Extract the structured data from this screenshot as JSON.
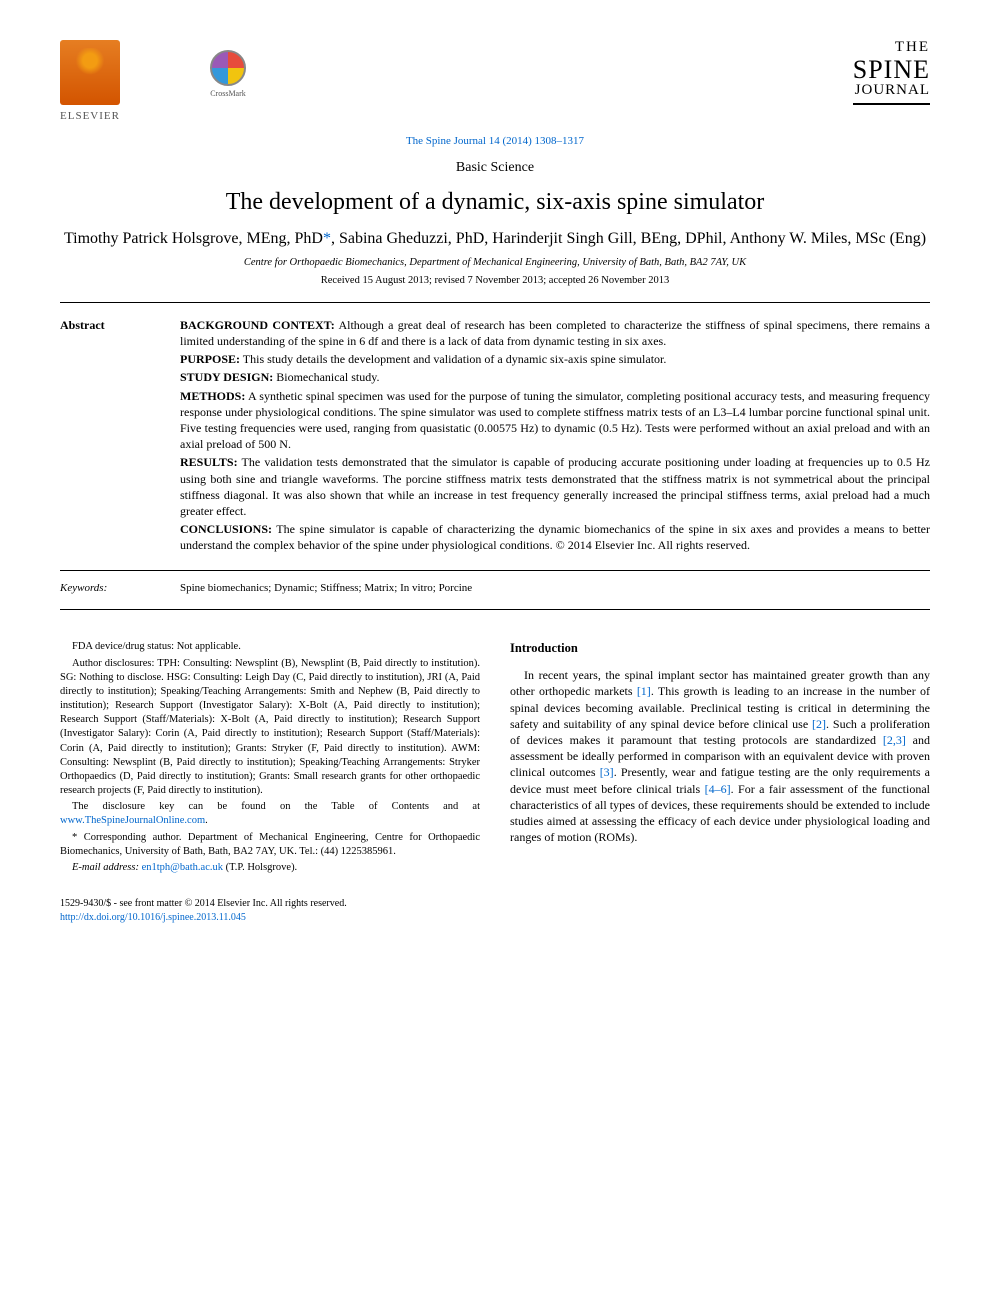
{
  "header": {
    "elsevier": "ELSEVIER",
    "crossmark": "CrossMark",
    "journal": {
      "the": "THE",
      "spine": "SPINE",
      "journal": "JOURNAL"
    },
    "citation": "The Spine Journal 14 (2014) 1308–1317"
  },
  "article": {
    "type": "Basic Science",
    "title": "The development of a dynamic, six-axis spine simulator",
    "authors": "Timothy Patrick Holsgrove, MEng, PhD*, Sabina Gheduzzi, PhD, Harinderjit Singh Gill, BEng, DPhil, Anthony W. Miles, MSc (Eng)",
    "affiliation": "Centre for Orthopaedic Biomechanics, Department of Mechanical Engineering, University of Bath, Bath, BA2 7AY, UK",
    "dates": "Received 15 August 2013; revised 7 November 2013; accepted 26 November 2013"
  },
  "abstract": {
    "label": "Abstract",
    "background_label": "BACKGROUND CONTEXT:",
    "background": "Although a great deal of research has been completed to characterize the stiffness of spinal specimens, there remains a limited understanding of the spine in 6 df and there is a lack of data from dynamic testing in six axes.",
    "purpose_label": "PURPOSE:",
    "purpose": "This study details the development and validation of a dynamic six-axis spine simulator.",
    "design_label": "STUDY DESIGN:",
    "design": "Biomechanical study.",
    "methods_label": "METHODS:",
    "methods": "A synthetic spinal specimen was used for the purpose of tuning the simulator, completing positional accuracy tests, and measuring frequency response under physiological conditions. The spine simulator was used to complete stiffness matrix tests of an L3–L4 lumbar porcine functional spinal unit. Five testing frequencies were used, ranging from quasistatic (0.00575 Hz) to dynamic (0.5 Hz). Tests were performed without an axial preload and with an axial preload of 500 N.",
    "results_label": "RESULTS:",
    "results": "The validation tests demonstrated that the simulator is capable of producing accurate positioning under loading at frequencies up to 0.5 Hz using both sine and triangle waveforms. The porcine stiffness matrix tests demonstrated that the stiffness matrix is not symmetrical about the principal stiffness diagonal. It was also shown that while an increase in test frequency generally increased the principal stiffness terms, axial preload had a much greater effect.",
    "conclusions_label": "CONCLUSIONS:",
    "conclusions": "The spine simulator is capable of characterizing the dynamic biomechanics of the spine in six axes and provides a means to better understand the complex behavior of the spine under physiological conditions.   © 2014 Elsevier Inc. All rights reserved."
  },
  "keywords": {
    "label": "Keywords:",
    "body": "Spine biomechanics; Dynamic; Stiffness; Matrix; In vitro; Porcine"
  },
  "footnotes": {
    "fda": "FDA device/drug status: Not applicable.",
    "disclosures": "Author disclosures: TPH: Consulting: Newsplint (B), Newsplint (B, Paid directly to institution). SG: Nothing to disclose. HSG: Consulting: Leigh Day (C, Paid directly to institution), JRI (A, Paid directly to institution); Speaking/Teaching Arrangements: Smith and Nephew (B, Paid directly to institution); Research Support (Investigator Salary): X-Bolt (A, Paid directly to institution); Research Support (Staff/Materials): X-Bolt (A, Paid directly to institution); Research Support (Investigator Salary): Corin (A, Paid directly to institution); Research Support (Staff/Materials): Corin (A, Paid directly to institution); Grants: Stryker (F, Paid directly to institution). AWM: Consulting: Newsplint (B, Paid directly to institution); Speaking/Teaching Arrangements: Stryker Orthopaedics (D, Paid directly to institution); Grants: Small research grants for other orthopaedic research projects (F, Paid directly to institution).",
    "disclosure_key_pre": "The disclosure key can be found on the Table of Contents and at ",
    "disclosure_key_link": "www.TheSpineJournalOnline.com",
    "disclosure_key_post": ".",
    "corresponding": "* Corresponding author. Department of Mechanical Engineering, Centre for Orthopaedic Biomechanics, University of Bath, Bath, BA2 7AY, UK. Tel.: (44) 1225385961.",
    "email_label": "E-mail address: ",
    "email": "en1tph@bath.ac.uk",
    "email_post": " (T.P. Holsgrove)."
  },
  "introduction": {
    "heading": "Introduction",
    "body_pre": "In recent years, the spinal implant sector has maintained greater growth than any other orthopedic markets ",
    "c1": "[1]",
    "body_2": ". This growth is leading to an increase in the number of spinal devices becoming available. Preclinical testing is critical in determining the safety and suitability of any spinal device before clinical use ",
    "c2": "[2]",
    "body_3": ". Such a proliferation of devices makes it paramount that testing protocols are standardized ",
    "c3": "[2,3]",
    "body_4": " and assessment be ideally performed in comparison with an equivalent device with proven clinical outcomes ",
    "c4": "[3]",
    "body_5": ". Presently, wear and fatigue testing are the only requirements a device must meet before clinical trials ",
    "c5": "[4–6]",
    "body_6": ". For a fair assessment of the functional characteristics of all types of devices, these requirements should be extended to include studies aimed at assessing the efficacy of each device under physiological loading and ranges of motion (ROMs)."
  },
  "footer": {
    "issn": "1529-9430/$ - see front matter © 2014 Elsevier Inc. All rights reserved.",
    "doi": "http://dx.doi.org/10.1016/j.spinee.2013.11.045"
  },
  "colors": {
    "link": "#0066cc",
    "text": "#000000",
    "elsevier_orange": "#e67e22"
  }
}
